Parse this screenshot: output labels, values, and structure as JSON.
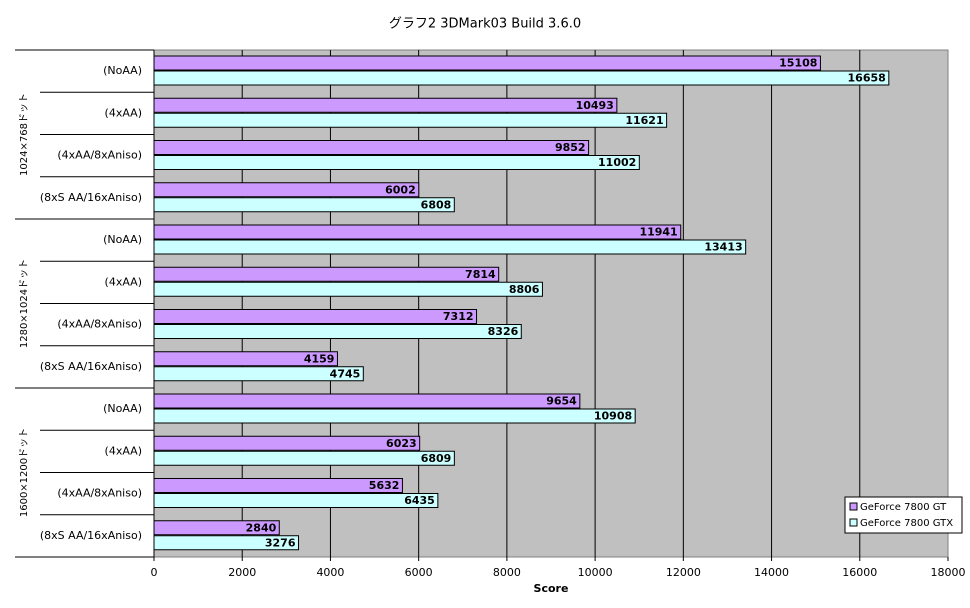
{
  "chart_data": {
    "type": "hbar",
    "title": "グラフ2  3DMark03  Build 3.6.0",
    "x_label": "Score",
    "groups": [
      "1024×768ドット",
      "1280×1024ドット",
      "1600×1200ドット"
    ],
    "categories": [
      "(NoAA)",
      "(4xAA)",
      "(4xAA/8xAniso)",
      "(8xS AA/16xAniso)",
      "(NoAA)",
      "(4xAA)",
      "(4xAA/8xAniso)",
      "(8xS AA/16xAniso)",
      "(NoAA)",
      "(4xAA)",
      "(4xAA/8xAniso)",
      "(8xS AA/16xAniso)"
    ],
    "series": [
      {
        "name": "GeForce 7800 GT",
        "color": "#cc99ff",
        "values": [
          15108,
          10493,
          9852,
          6002,
          11941,
          7814,
          7312,
          4159,
          9654,
          6023,
          5632,
          2840
        ]
      },
      {
        "name": "GeForce 7800 GTX",
        "color": "#ccffff",
        "values": [
          16658,
          11621,
          11002,
          6808,
          13413,
          8806,
          8326,
          4745,
          10908,
          6809,
          6435,
          3276
        ]
      }
    ],
    "xlim": [
      0,
      18000
    ],
    "xticks": [
      0,
      2000,
      4000,
      6000,
      8000,
      10000,
      12000,
      14000,
      16000,
      18000
    ],
    "grid": true,
    "legend": "lower right"
  }
}
